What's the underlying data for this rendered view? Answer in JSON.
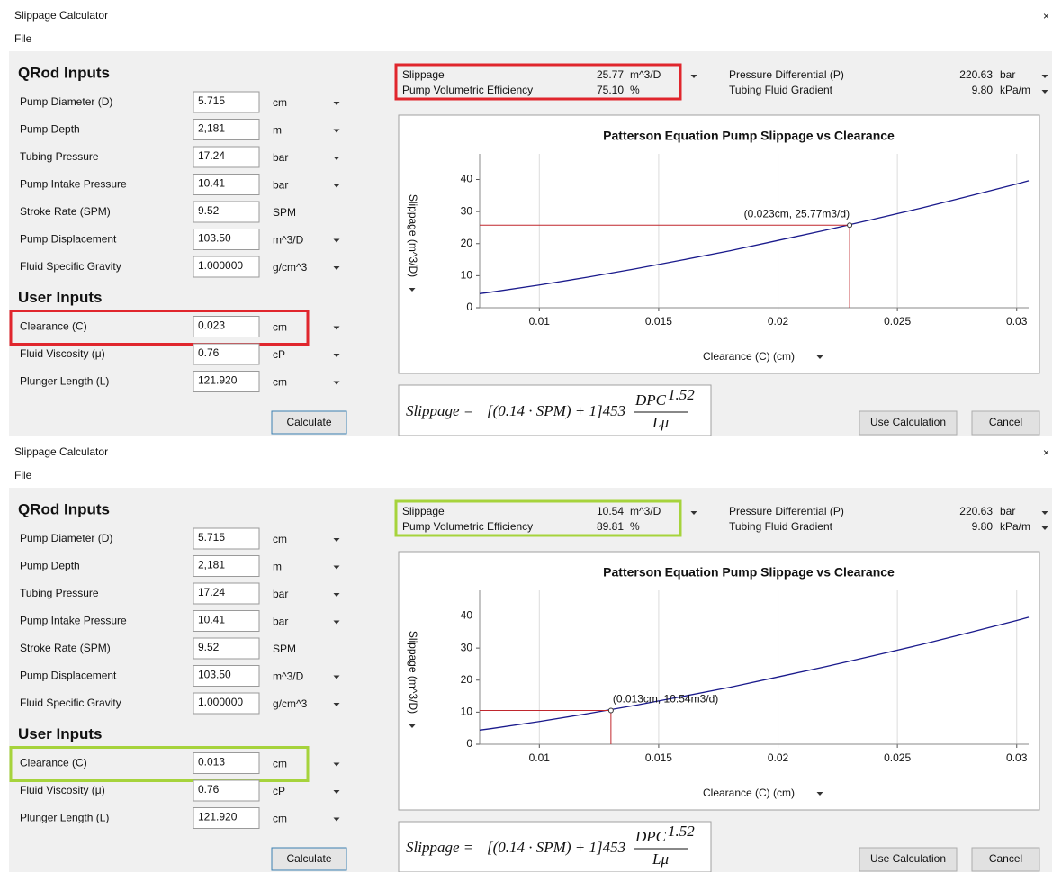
{
  "windows": [
    {
      "title": "Slippage Calculator",
      "menu": "File",
      "close": "×",
      "highlight_color": "#e0262d",
      "sections": [
        {
          "heading": "QRod Inputs",
          "fields": [
            {
              "label": "Pump Diameter (D)",
              "value": "5.715",
              "unit": "cm",
              "dropdown": true
            },
            {
              "label": "Pump Depth",
              "value": "2,181",
              "unit": "m",
              "dropdown": true
            },
            {
              "label": "Tubing Pressure",
              "value": "17.24",
              "unit": "bar",
              "dropdown": true
            },
            {
              "label": "Pump Intake Pressure",
              "value": "10.41",
              "unit": "bar",
              "dropdown": true
            },
            {
              "label": "Stroke Rate (SPM)",
              "value": "9.52",
              "unit": "SPM",
              "dropdown": false
            },
            {
              "label": "Pump Displacement",
              "value": "103.50",
              "unit": "m^3/D",
              "dropdown": true
            },
            {
              "label": "Fluid Specific Gravity",
              "value": "1.000000",
              "unit": "g/cm^3",
              "dropdown": true
            }
          ]
        },
        {
          "heading": "User Inputs",
          "fields": [
            {
              "label": "Clearance (C)",
              "value": "0.023",
              "unit": "cm",
              "dropdown": true,
              "highlight": true
            },
            {
              "label": "Fluid Viscosity (μ)",
              "value": "0.76",
              "unit": "cP",
              "dropdown": true
            },
            {
              "label": "Plunger Length (L)",
              "value": "121.920",
              "unit": "cm",
              "dropdown": true
            }
          ]
        }
      ],
      "calculate": "Calculate",
      "results": [
        {
          "label": "Slippage",
          "value": "25.77",
          "unit": "m^3/D"
        },
        {
          "label": "Pump Volumetric Efficiency",
          "value": "75.10",
          "unit": "%"
        }
      ],
      "results_right": [
        {
          "label": "Pressure Differential (P)",
          "value": "220.63",
          "unit": "bar"
        },
        {
          "label": "Tubing Fluid Gradient",
          "value": "9.80",
          "unit": "kPa/m"
        }
      ],
      "chart": {
        "type": "line",
        "title": "Patterson Equation Pump Slippage vs Clearance",
        "x_label": "Clearance (C) (cm)",
        "y_label": "Slippage (m^3/D)",
        "x": [
          0.0075,
          0.008,
          0.01,
          0.012,
          0.014,
          0.016,
          0.018,
          0.02,
          0.022,
          0.024,
          0.026,
          0.028,
          0.03,
          0.0305
        ],
        "values": [
          4.4,
          4.9,
          7.1,
          9.5,
          12.1,
          14.9,
          17.8,
          21.0,
          24.2,
          27.6,
          31.1,
          34.8,
          38.6,
          39.6
        ],
        "color": "#1a1a8c",
        "xlim": [
          0.0075,
          0.0305
        ],
        "ylim": [
          0,
          48
        ],
        "xticks": [
          0.01,
          0.015,
          0.02,
          0.025,
          0.03
        ],
        "yticks": [
          0,
          10,
          20,
          30,
          40
        ],
        "grid": true,
        "marker": {
          "x": 0.023,
          "y": 25.77,
          "label": "(0.023cm, 25.77m3/d)",
          "color": "#c0272d"
        }
      },
      "formula": {
        "lhs": "Slippage =",
        "expr": "[(0.14 · SPM) + 1]453",
        "numerator": "DPC",
        "exponent": "1.52",
        "denominator": "Lμ"
      },
      "buttons": [
        "Use Calculation",
        "Cancel"
      ]
    },
    {
      "title": "Slippage Calculator",
      "menu": "File",
      "close": "×",
      "highlight_color": "#a6d33c",
      "sections": [
        {
          "heading": "QRod Inputs",
          "fields": [
            {
              "label": "Pump Diameter (D)",
              "value": "5.715",
              "unit": "cm",
              "dropdown": true
            },
            {
              "label": "Pump Depth",
              "value": "2,181",
              "unit": "m",
              "dropdown": true
            },
            {
              "label": "Tubing Pressure",
              "value": "17.24",
              "unit": "bar",
              "dropdown": true
            },
            {
              "label": "Pump Intake Pressure",
              "value": "10.41",
              "unit": "bar",
              "dropdown": true
            },
            {
              "label": "Stroke Rate (SPM)",
              "value": "9.52",
              "unit": "SPM",
              "dropdown": false
            },
            {
              "label": "Pump Displacement",
              "value": "103.50",
              "unit": "m^3/D",
              "dropdown": true
            },
            {
              "label": "Fluid Specific Gravity",
              "value": "1.000000",
              "unit": "g/cm^3",
              "dropdown": true
            }
          ]
        },
        {
          "heading": "User Inputs",
          "fields": [
            {
              "label": "Clearance (C)",
              "value": "0.013",
              "unit": "cm",
              "dropdown": true,
              "highlight": true
            },
            {
              "label": "Fluid Viscosity (μ)",
              "value": "0.76",
              "unit": "cP",
              "dropdown": true
            },
            {
              "label": "Plunger Length (L)",
              "value": "121.920",
              "unit": "cm",
              "dropdown": true
            }
          ]
        }
      ],
      "calculate": "Calculate",
      "results": [
        {
          "label": "Slippage",
          "value": "10.54",
          "unit": "m^3/D"
        },
        {
          "label": "Pump Volumetric Efficiency",
          "value": "89.81",
          "unit": "%"
        }
      ],
      "results_right": [
        {
          "label": "Pressure Differential (P)",
          "value": "220.63",
          "unit": "bar"
        },
        {
          "label": "Tubing Fluid Gradient",
          "value": "9.80",
          "unit": "kPa/m"
        }
      ],
      "chart": {
        "type": "line",
        "title": "Patterson Equation Pump Slippage vs Clearance",
        "x_label": "Clearance (C) (cm)",
        "y_label": "Slippage (m^3/D)",
        "x": [
          0.0075,
          0.008,
          0.01,
          0.012,
          0.014,
          0.016,
          0.018,
          0.02,
          0.022,
          0.024,
          0.026,
          0.028,
          0.03,
          0.0305
        ],
        "values": [
          4.4,
          4.9,
          7.1,
          9.5,
          12.1,
          14.9,
          17.8,
          21.0,
          24.2,
          27.6,
          31.1,
          34.8,
          38.6,
          39.6
        ],
        "color": "#1a1a8c",
        "xlim": [
          0.0075,
          0.0305
        ],
        "ylim": [
          0,
          48
        ],
        "xticks": [
          0.01,
          0.015,
          0.02,
          0.025,
          0.03
        ],
        "yticks": [
          0,
          10,
          20,
          30,
          40
        ],
        "grid": true,
        "marker": {
          "x": 0.013,
          "y": 10.54,
          "label": "(0.013cm, 10.54m3/d)",
          "color": "#c0272d"
        }
      },
      "formula": {
        "lhs": "Slippage =",
        "expr": "[(0.14 · SPM) + 1]453",
        "numerator": "DPC",
        "exponent": "1.52",
        "denominator": "Lμ"
      },
      "buttons": [
        "Use Calculation",
        "Cancel"
      ]
    }
  ]
}
